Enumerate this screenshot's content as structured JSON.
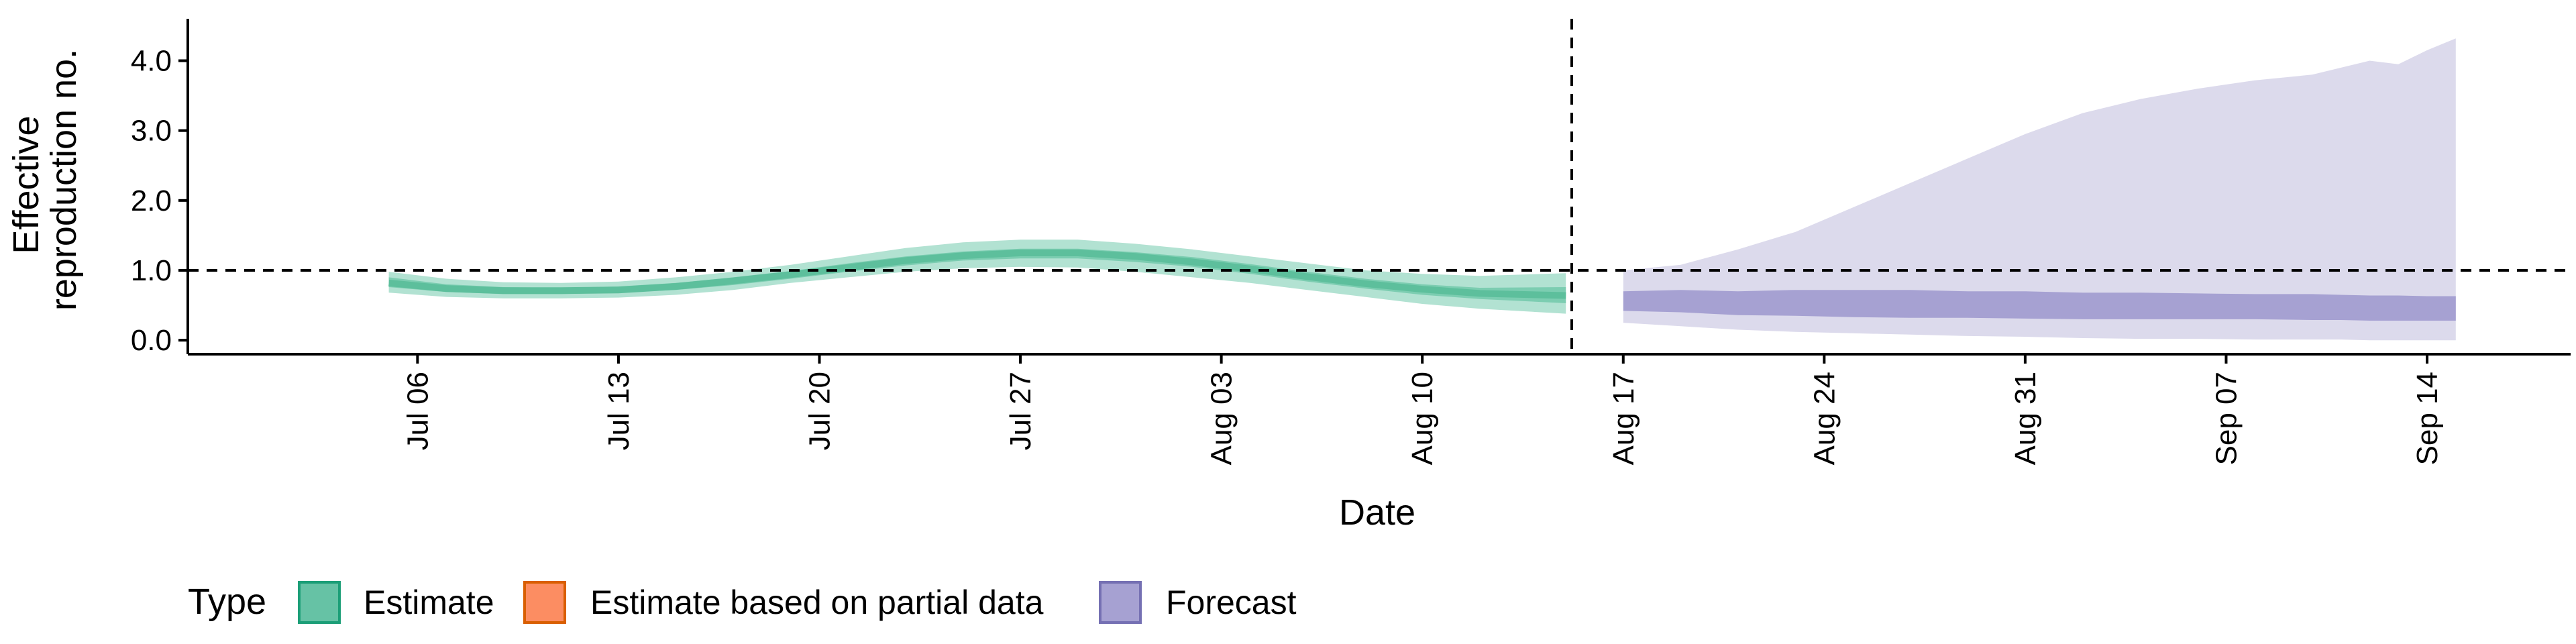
{
  "chart_data": {
    "type": "area",
    "xlabel": "Date",
    "ylabel_lines": [
      "Effective",
      "reproduction no."
    ],
    "ylim": [
      -0.2,
      4.6
    ],
    "y_ticks": [
      0,
      1,
      2,
      3,
      4
    ],
    "y_tick_labels": [
      "0.0",
      "1.0",
      "2.0",
      "3.0",
      "4.0"
    ],
    "x_start": "2020-06-28",
    "x_end": "2020-09-19",
    "x_ticks": [
      "2020-07-06",
      "2020-07-13",
      "2020-07-20",
      "2020-07-27",
      "2020-08-03",
      "2020-08-10",
      "2020-08-17",
      "2020-08-24",
      "2020-08-31",
      "2020-09-07",
      "2020-09-14"
    ],
    "x_tick_labels": [
      "Jul 06",
      "Jul 13",
      "Jul 20",
      "Jul 27",
      "Aug 03",
      "Aug 10",
      "Aug 17",
      "Aug 24",
      "Aug 31",
      "Sep 07",
      "Sep 14"
    ],
    "reference_line_y": 1.0,
    "forecast_start": "2020-08-16",
    "legend": {
      "title": "Type",
      "position": "bottom",
      "items": [
        {
          "label": "Estimate",
          "fill": "#66c2a5",
          "stroke": "#1b9e77"
        },
        {
          "label": "Estimate based on partial data",
          "fill": "#fc8d62",
          "stroke": "#d95f02"
        },
        {
          "label": "Forecast",
          "fill": "#a6a1d2",
          "stroke": "#7570b3"
        }
      ]
    },
    "series": [
      {
        "name": "Estimate",
        "color": "#1b9e77",
        "dates": [
          "2020-07-05",
          "2020-07-07",
          "2020-07-09",
          "2020-07-11",
          "2020-07-13",
          "2020-07-15",
          "2020-07-17",
          "2020-07-19",
          "2020-07-21",
          "2020-07-23",
          "2020-07-25",
          "2020-07-27",
          "2020-07-29",
          "2020-07-31",
          "2020-08-02",
          "2020-08-04",
          "2020-08-06",
          "2020-08-08",
          "2020-08-10",
          "2020-08-12",
          "2020-08-15"
        ],
        "outer_lower": [
          0.68,
          0.62,
          0.6,
          0.6,
          0.61,
          0.65,
          0.72,
          0.82,
          0.9,
          0.98,
          1.03,
          1.05,
          1.04,
          0.98,
          0.9,
          0.82,
          0.72,
          0.62,
          0.52,
          0.45,
          0.38
        ],
        "outer_upper": [
          0.98,
          0.88,
          0.83,
          0.82,
          0.84,
          0.9,
          0.98,
          1.08,
          1.2,
          1.32,
          1.4,
          1.44,
          1.44,
          1.38,
          1.3,
          1.2,
          1.1,
          1.0,
          0.95,
          0.92,
          0.96
        ],
        "inner_lower": [
          0.76,
          0.69,
          0.66,
          0.66,
          0.68,
          0.72,
          0.79,
          0.88,
          0.98,
          1.07,
          1.14,
          1.17,
          1.17,
          1.12,
          1.05,
          0.95,
          0.84,
          0.74,
          0.65,
          0.59,
          0.53
        ],
        "inner_upper": [
          0.9,
          0.8,
          0.76,
          0.75,
          0.77,
          0.82,
          0.9,
          0.99,
          1.1,
          1.2,
          1.27,
          1.31,
          1.31,
          1.26,
          1.19,
          1.09,
          0.98,
          0.88,
          0.8,
          0.75,
          0.76
        ],
        "median": [
          0.82,
          0.74,
          0.71,
          0.71,
          0.72,
          0.77,
          0.85,
          0.94,
          1.04,
          1.14,
          1.21,
          1.25,
          1.25,
          1.2,
          1.12,
          1.02,
          0.91,
          0.81,
          0.73,
          0.67,
          0.64
        ]
      },
      {
        "name": "Forecast",
        "color": "#7570b3",
        "dates": [
          "2020-08-17",
          "2020-08-19",
          "2020-08-21",
          "2020-08-23",
          "2020-08-25",
          "2020-08-27",
          "2020-08-29",
          "2020-08-31",
          "2020-09-02",
          "2020-09-04",
          "2020-09-06",
          "2020-09-08",
          "2020-09-10",
          "2020-09-11",
          "2020-09-12",
          "2020-09-13",
          "2020-09-14",
          "2020-09-15"
        ],
        "outer_lower": [
          0.25,
          0.2,
          0.15,
          0.12,
          0.1,
          0.08,
          0.06,
          0.05,
          0.03,
          0.02,
          0.02,
          0.01,
          0.01,
          0.01,
          0.0,
          0.0,
          0.0,
          0.0
        ],
        "outer_upper": [
          1.0,
          1.08,
          1.3,
          1.55,
          1.9,
          2.25,
          2.6,
          2.95,
          3.25,
          3.45,
          3.6,
          3.72,
          3.8,
          3.9,
          4.0,
          3.95,
          4.15,
          4.32
        ],
        "inner_lower": [
          0.42,
          0.4,
          0.36,
          0.35,
          0.33,
          0.32,
          0.32,
          0.31,
          0.3,
          0.3,
          0.3,
          0.3,
          0.29,
          0.29,
          0.28,
          0.28,
          0.28,
          0.28
        ],
        "inner_upper": [
          0.7,
          0.72,
          0.7,
          0.72,
          0.72,
          0.72,
          0.7,
          0.7,
          0.68,
          0.68,
          0.67,
          0.66,
          0.66,
          0.65,
          0.64,
          0.64,
          0.63,
          0.63
        ]
      }
    ]
  }
}
